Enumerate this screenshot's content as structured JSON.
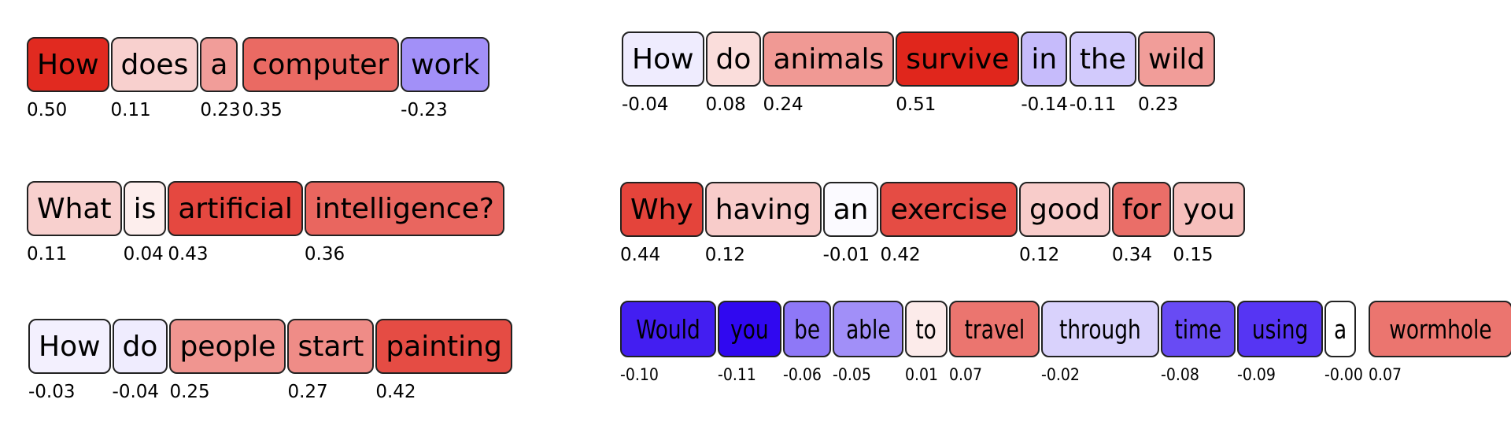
{
  "sentences": [
    {
      "tokens": [
        {
          "word": "How",
          "score": "0.50"
        },
        {
          "word": "does",
          "score": "0.11"
        },
        {
          "word": "a",
          "score": "0.23"
        },
        {
          "word": "computer",
          "score": "0.35"
        },
        {
          "word": "work",
          "score": "-0.23"
        }
      ]
    },
    {
      "tokens": [
        {
          "word": "What",
          "score": "0.11"
        },
        {
          "word": "is",
          "score": "0.04"
        },
        {
          "word": "artificial",
          "score": "0.43"
        },
        {
          "word": "intelligence?",
          "score": "0.36"
        }
      ]
    },
    {
      "tokens": [
        {
          "word": "How",
          "score": "-0.03"
        },
        {
          "word": "do",
          "score": "-0.04"
        },
        {
          "word": "people",
          "score": "0.25"
        },
        {
          "word": "start",
          "score": "0.27"
        },
        {
          "word": "painting",
          "score": "0.42"
        }
      ]
    },
    {
      "tokens": [
        {
          "word": "How",
          "score": "-0.04"
        },
        {
          "word": "do",
          "score": "0.08"
        },
        {
          "word": "animals",
          "score": "0.24"
        },
        {
          "word": "survive",
          "score": "0.51"
        },
        {
          "word": "in",
          "score": "-0.14"
        },
        {
          "word": "the",
          "score": "-0.11"
        },
        {
          "word": "wild",
          "score": "0.23"
        }
      ]
    },
    {
      "tokens": [
        {
          "word": "Why",
          "score": "0.44"
        },
        {
          "word": "having",
          "score": "0.12"
        },
        {
          "word": "an",
          "score": "-0.01"
        },
        {
          "word": "exercise",
          "score": "0.42"
        },
        {
          "word": "good",
          "score": "0.12"
        },
        {
          "word": "for",
          "score": "0.34"
        },
        {
          "word": "you",
          "score": "0.15"
        }
      ]
    },
    {
      "tokens": [
        {
          "word": "Would",
          "score": "-0.10"
        },
        {
          "word": "you",
          "score": "-0.11"
        },
        {
          "word": "be",
          "score": "-0.06"
        },
        {
          "word": "able",
          "score": "-0.05"
        },
        {
          "word": "to",
          "score": "0.01"
        },
        {
          "word": "travel",
          "score": "0.07"
        },
        {
          "word": "through",
          "score": "-0.02"
        },
        {
          "word": "time",
          "score": "-0.08"
        },
        {
          "word": "using",
          "score": "-0.09"
        },
        {
          "word": "a",
          "score": "-0.00"
        },
        {
          "word": "wormhole",
          "score": "0.07"
        }
      ]
    }
  ]
}
